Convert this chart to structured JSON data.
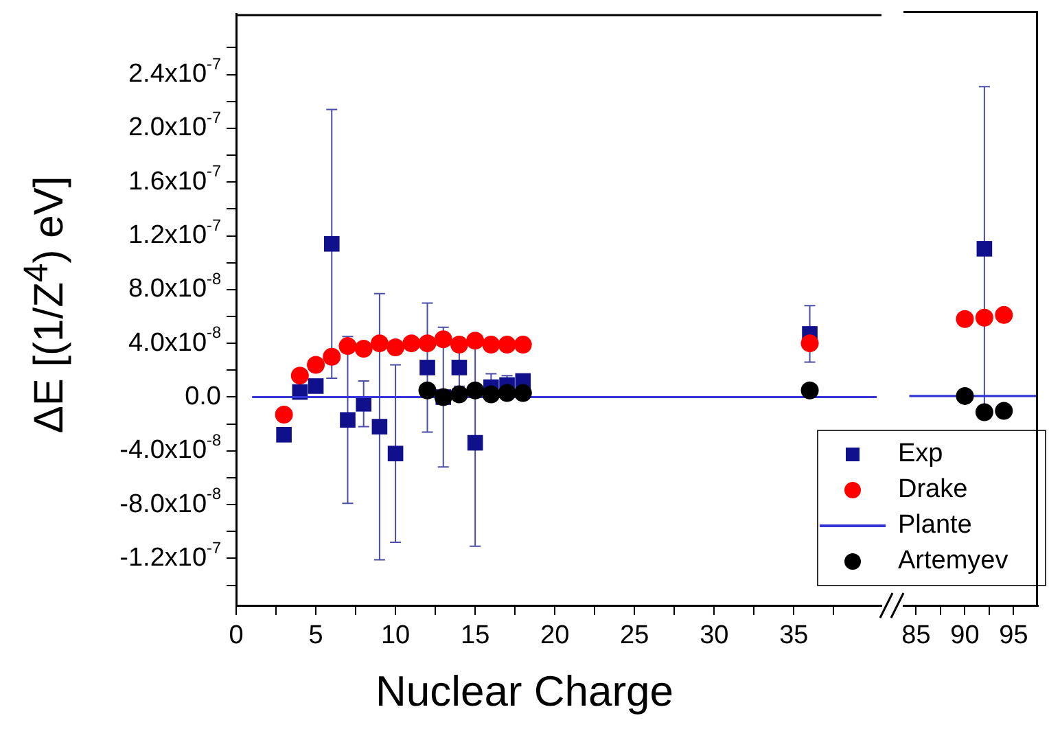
{
  "chart_data": [
    {
      "type": "scatter",
      "ylabel": "ΔE [(1/Z$^{4}$) eV]",
      "xlabel": "Nuclear Charge",
      "xlim": [
        0,
        40.5
      ],
      "ylim": [
        -1.55e-07,
        2.85e-07
      ],
      "xticks": [
        0,
        {
          "value": 2.5,
          "label": null
        },
        5,
        {
          "value": 7.5,
          "label": null
        },
        10,
        {
          "value": 12.5,
          "label": null
        },
        15,
        {
          "value": 17.5,
          "label": null
        },
        20,
        {
          "value": 22.5,
          "label": null
        },
        25,
        {
          "value": 27.5,
          "label": null
        },
        30,
        {
          "value": 32.5,
          "label": null
        },
        35,
        {
          "value": 37.5,
          "label": null
        }
      ],
      "yticks": [
        {
          "value": -1.4e-07,
          "label": null
        },
        {
          "value": -1.2e-07,
          "label": "-1.2x10$^{-7}$"
        },
        {
          "value": -1e-07,
          "label": null
        },
        {
          "value": -8e-08,
          "label": "-8.0x10$^{-8}$"
        },
        {
          "value": -6e-08,
          "label": null
        },
        {
          "value": -4e-08,
          "label": "-4.0x10$^{-8}$"
        },
        {
          "value": -2e-08,
          "label": null
        },
        {
          "value": 0,
          "label": "0.0"
        },
        {
          "value": 2e-08,
          "label": null
        },
        {
          "value": 4e-08,
          "label": "4.0x10$^{-8}$"
        },
        {
          "value": 6e-08,
          "label": null
        },
        {
          "value": 8e-08,
          "label": "8.0x10$^{-8}$"
        },
        {
          "value": 1e-07,
          "label": null
        },
        {
          "value": 1.2e-07,
          "label": "1.2x10$^{-7}$"
        },
        {
          "value": 1.4e-07,
          "label": null
        },
        {
          "value": 1.6e-07,
          "label": "1.6x10$^{-7}$"
        },
        {
          "value": 1.8e-07,
          "label": null
        },
        {
          "value": 2e-07,
          "label": "2.0x10$^{-7}$"
        },
        {
          "value": 2.2e-07,
          "label": null
        },
        {
          "value": 2.4e-07,
          "label": "2.4x10$^{-7}$"
        },
        {
          "value": 2.6e-07,
          "label": null
        }
      ],
      "grid": false,
      "legend": "bottom right",
      "series": [
        {
          "name": "Exp",
          "type": "scatter",
          "marker": "square",
          "color": "#10108c",
          "x": [
            3,
            4,
            5,
            6,
            7,
            8,
            9,
            10,
            12,
            13,
            14,
            15,
            16,
            17,
            18,
            36
          ],
          "values": [
            -2.8e-08,
            3.8e-09,
            8.2e-09,
            1.14e-07,
            -1.7e-08,
            -5e-09,
            -2.2e-08,
            -4.2e-08,
            2.2e-08,
            0,
            2.2e-08,
            -3.4e-08,
            7.4e-09,
            9e-09,
            1.2e-08,
            4.7e-08
          ],
          "errors": [
            null,
            null,
            null,
            1e-07,
            6.2e-08,
            1.7e-08,
            9.9e-08,
            6.6e-08,
            4.8e-08,
            5.2e-08,
            1.4e-08,
            7.7e-08,
            1e-08,
            7e-09,
            null,
            2.1e-08
          ]
        },
        {
          "name": "Drake",
          "type": "scatter",
          "marker": "circle",
          "color": "#ff0000",
          "x": [
            3,
            4,
            5,
            6,
            7,
            8,
            9,
            10,
            11,
            12,
            13,
            14,
            15,
            16,
            17,
            18,
            36
          ],
          "values": [
            -1.3e-08,
            1.6e-08,
            2.4e-08,
            3e-08,
            3.8e-08,
            3.6e-08,
            4e-08,
            3.7e-08,
            4e-08,
            4e-08,
            4.3e-08,
            3.9e-08,
            4.2e-08,
            3.9e-08,
            3.9e-08,
            3.9e-08,
            4e-08
          ]
        },
        {
          "name": "Plante",
          "type": "line",
          "marker": "none",
          "color": "#3535d5",
          "x": [
            1,
            40.2
          ],
          "values": [
            0,
            0
          ]
        },
        {
          "name": "Artemyev",
          "type": "scatter",
          "marker": "circle",
          "color": "#000000",
          "x": [
            12,
            13,
            14,
            15,
            16,
            17,
            18,
            36
          ],
          "values": [
            5e-09,
            0,
            2e-09,
            5e-09,
            2e-09,
            3e-09,
            3e-09,
            5e-09
          ]
        }
      ]
    },
    {
      "type": "scatter",
      "xlim": [
        83.7,
        97.5
      ],
      "ylim": [
        -1.55e-07,
        2.85e-07
      ],
      "tick_labels": "x",
      "grid": false,
      "xticks": [
        85,
        {
          "value": 87.5,
          "label": null
        },
        90,
        {
          "value": 92.5,
          "label": null
        },
        95
      ],
      "series": [
        {
          "type": "scatter",
          "marker": "square",
          "color": "#10108c",
          "x": [
            92
          ],
          "values": [
            1.09e-07
          ],
          "errors": [
            1.2e-07
          ]
        },
        {
          "type": "scatter",
          "marker": "circle",
          "color": "#ff0000",
          "x": [
            90,
            92,
            94
          ],
          "values": [
            5.7e-08,
            5.8e-08,
            6e-08
          ]
        },
        {
          "type": "line",
          "marker": "none",
          "color": "#3535d5",
          "x": [
            84.3,
            97.5
          ],
          "values": [
            0,
            0
          ]
        },
        {
          "type": "scatter",
          "marker": "circle",
          "color": "#000000",
          "x": [
            90,
            92,
            94
          ],
          "values": [
            0,
            -1.2e-08,
            -1.1e-08
          ]
        }
      ]
    }
  ]
}
